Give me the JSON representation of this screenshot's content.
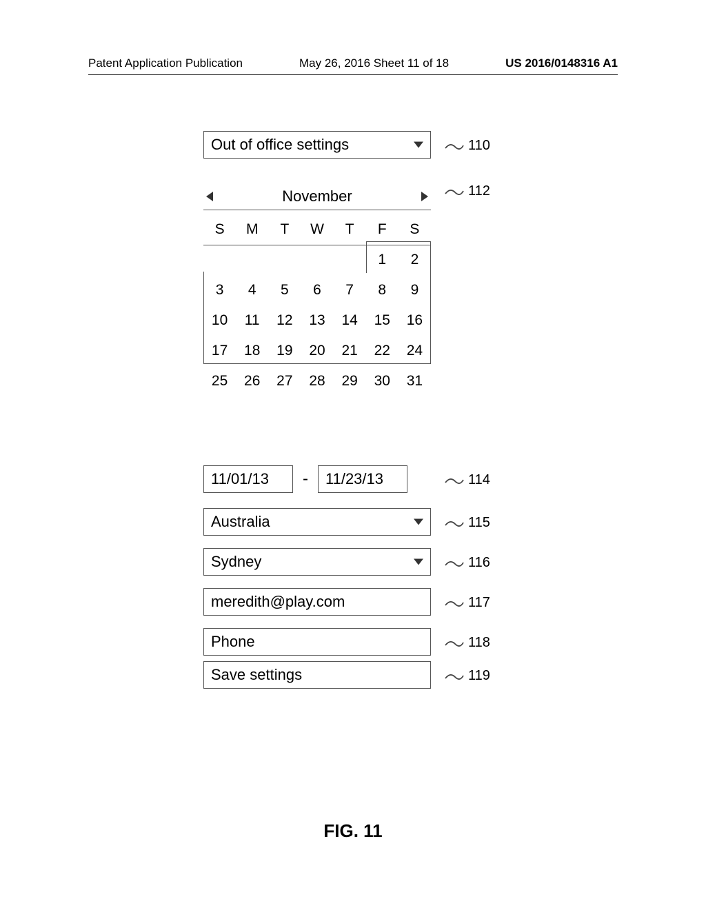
{
  "header": {
    "left": "Patent Application Publication",
    "mid": "May 26, 2016  Sheet 11 of 18",
    "right": "US 2016/0148316 A1"
  },
  "title_dropdown": {
    "label": "Out of office settings",
    "ref": "110"
  },
  "calendar": {
    "month": "November",
    "ref": "112",
    "day_headers": [
      "S",
      "M",
      "T",
      "W",
      "T",
      "F",
      "S"
    ],
    "weeks": [
      [
        "",
        "",
        "",
        "",
        "",
        "1",
        "2"
      ],
      [
        "3",
        "4",
        "5",
        "6",
        "7",
        "8",
        "9"
      ],
      [
        "10",
        "11",
        "12",
        "13",
        "14",
        "15",
        "16"
      ],
      [
        "17",
        "18",
        "19",
        "20",
        "21",
        "22",
        "24"
      ],
      [
        "25",
        "26",
        "27",
        "28",
        "29",
        "30",
        "31"
      ]
    ]
  },
  "date_range": {
    "from": "11/01/13",
    "to": "11/23/13",
    "ref": "114"
  },
  "country": {
    "value": "Australia",
    "ref": "115"
  },
  "city": {
    "value": "Sydney",
    "ref": "116"
  },
  "email": {
    "value": "meredith@play.com",
    "ref": "117"
  },
  "phone": {
    "placeholder": "Phone",
    "ref": "118"
  },
  "save": {
    "label": "Save settings",
    "ref": "119"
  },
  "figure_label": "FIG. 11"
}
